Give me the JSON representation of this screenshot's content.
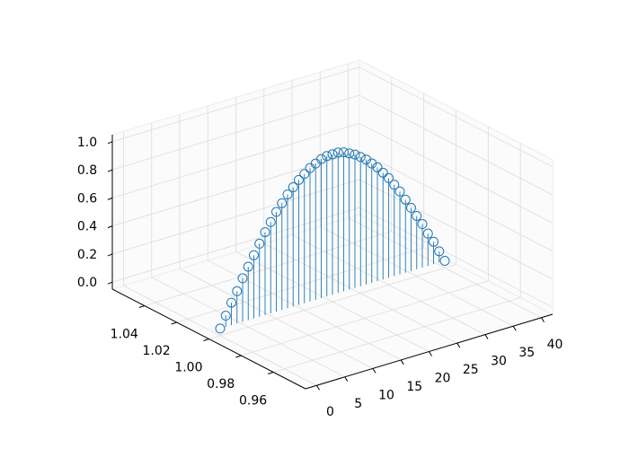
{
  "chart_data": {
    "type": "stem3d",
    "color": "#1f77b4",
    "grid": true,
    "x": [
      0,
      1,
      2,
      3,
      4,
      5,
      6,
      7,
      8,
      9,
      10,
      11,
      12,
      13,
      14,
      15,
      16,
      17,
      18,
      19,
      20,
      21,
      22,
      23,
      24,
      25,
      26,
      27,
      28,
      29,
      30,
      31,
      32,
      33,
      34,
      35,
      36,
      37,
      38,
      39,
      40
    ],
    "y": [
      1,
      1,
      1,
      1,
      1,
      1,
      1,
      1,
      1,
      1,
      1,
      1,
      1,
      1,
      1,
      1,
      1,
      1,
      1,
      1,
      1,
      1,
      1,
      1,
      1,
      1,
      1,
      1,
      1,
      1,
      1,
      1,
      1,
      1,
      1,
      1,
      1,
      1,
      1,
      1,
      1
    ],
    "values": [
      0,
      0.08,
      0.16,
      0.23,
      0.31,
      0.38,
      0.45,
      0.52,
      0.59,
      0.65,
      0.71,
      0.76,
      0.81,
      0.85,
      0.89,
      0.92,
      0.95,
      0.97,
      0.99,
      1.0,
      1.0,
      1.0,
      0.99,
      0.97,
      0.95,
      0.92,
      0.89,
      0.85,
      0.81,
      0.76,
      0.71,
      0.65,
      0.59,
      0.52,
      0.45,
      0.38,
      0.31,
      0.23,
      0.16,
      0.08,
      0
    ],
    "xlim": [
      -2,
      42
    ],
    "xticks": [
      0,
      5,
      10,
      15,
      20,
      25,
      30,
      35,
      40
    ],
    "ylim": [
      0.94,
      1.06
    ],
    "yticks": [
      0.96,
      0.98,
      {
        "value": 1.0,
        "label": "1.00"
      },
      1.02,
      1.04
    ],
    "zlim": [
      -0.05,
      1.05
    ],
    "zticks": [
      {
        "value": 0,
        "label": "0.0"
      },
      0.2,
      0.4,
      0.6,
      0.8,
      {
        "value": 1.0,
        "label": "1.0"
      }
    ]
  }
}
